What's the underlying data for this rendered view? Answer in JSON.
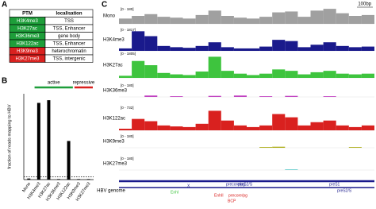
{
  "panels": {
    "a": "A",
    "b": "B",
    "c": "C"
  },
  "table": {
    "header": [
      "PTM",
      "localisation"
    ],
    "rows": [
      {
        "ptm": "H3K4me3",
        "loc": "TSS",
        "color": "#1e9e3a"
      },
      {
        "ptm": "H3K27ac",
        "loc": "TSS, Enhancer",
        "color": "#1e9e3a"
      },
      {
        "ptm": "H3K36me3",
        "loc": "gene body",
        "color": "#1e9e3a"
      },
      {
        "ptm": "H3K122ac",
        "loc": "TSS, Enhancer",
        "color": "#1e9e3a"
      },
      {
        "ptm": "H3K9me3",
        "loc": "heterochromatin",
        "color": "#d9211f"
      },
      {
        "ptm": "H3K27me3",
        "loc": "TSS, intergenic",
        "color": "#d9211f"
      }
    ]
  },
  "chart_data": [
    {
      "type": "bar",
      "ylabel": "fraction of reads mapping to HBV",
      "categories": [
        "Mono",
        "H3K4me3",
        "H3K27ac",
        "H3K36me3",
        "H3K122ac",
        "H3K9me3",
        "H3K27me3"
      ],
      "values": [
        0.002,
        0.143,
        0.148,
        0.001,
        0.072,
        0.001,
        0.001
      ],
      "color": "#000000",
      "ylim": [
        0,
        0.16
      ],
      "threshold": 0.005,
      "groups": [
        {
          "label": "active",
          "color": "#1e9e3a",
          "from": 1,
          "to": 4
        },
        {
          "label": "repressive",
          "color": "#d9211f",
          "from": 5,
          "to": 6
        }
      ]
    },
    {
      "type": "tracks",
      "scale": "100bp",
      "genome_label": "HBV genome",
      "series": [
        {
          "name": "Mono",
          "range": "[0 - 180]",
          "ylim": [
            0,
            180
          ],
          "color": "#a0a0a0",
          "values": [
            60,
            90,
            110,
            80,
            70,
            60,
            100,
            150,
            90,
            70,
            60,
            80,
            130,
            140,
            80,
            150,
            170,
            120,
            90,
            100
          ]
        },
        {
          "name": "H3K4me3",
          "range": "[0 - 1817]",
          "ylim": [
            0,
            1817
          ],
          "color": "#1a1a8c",
          "values": [
            200,
            1600,
            1200,
            400,
            300,
            250,
            400,
            700,
            300,
            200,
            200,
            350,
            900,
            800,
            300,
            500,
            700,
            400,
            300,
            350
          ]
        },
        {
          "name": "H3K27ac",
          "range": "[0 - 1805]",
          "ylim": [
            0,
            1805
          ],
          "color": "#3ec43e",
          "values": [
            150,
            1200,
            900,
            350,
            250,
            200,
            450,
            1500,
            500,
            300,
            200,
            300,
            600,
            500,
            250,
            400,
            500,
            300,
            250,
            300
          ]
        },
        {
          "name": "H3K36me3",
          "range": "[0 - 180]",
          "ylim": [
            0,
            180
          ],
          "color": "#c040c0",
          "values": [
            0,
            0,
            20,
            0,
            10,
            0,
            0,
            15,
            0,
            20,
            0,
            10,
            0,
            15,
            0,
            0,
            10,
            0,
            0,
            0
          ]
        },
        {
          "name": "H3K122ac",
          "range": "[0 - 732]",
          "ylim": [
            0,
            732
          ],
          "color": "#d9211f",
          "values": [
            50,
            350,
            280,
            150,
            120,
            100,
            200,
            600,
            300,
            150,
            100,
            150,
            500,
            400,
            150,
            250,
            300,
            150,
            100,
            150
          ]
        },
        {
          "name": "H3K9me3",
          "range": "[0 - 180]",
          "ylim": [
            0,
            180
          ],
          "color": "#b0b020",
          "values": [
            0,
            0,
            0,
            0,
            0,
            0,
            0,
            0,
            0,
            0,
            0,
            10,
            15,
            0,
            0,
            0,
            0,
            0,
            10,
            0
          ]
        },
        {
          "name": "H3K27me3",
          "range": "[0 - 180]",
          "ylim": [
            0,
            180
          ],
          "color": "#40c0c0",
          "values": [
            0,
            0,
            0,
            0,
            0,
            0,
            0,
            0,
            0,
            0,
            0,
            0,
            0,
            8,
            0,
            0,
            0,
            0,
            0,
            0
          ]
        }
      ],
      "features": [
        "EnhI",
        "X",
        "precore/pg",
        "preS2/S",
        "EnhII",
        "precore/pg",
        "BCP",
        "preS1",
        "preS2/S"
      ]
    }
  ]
}
